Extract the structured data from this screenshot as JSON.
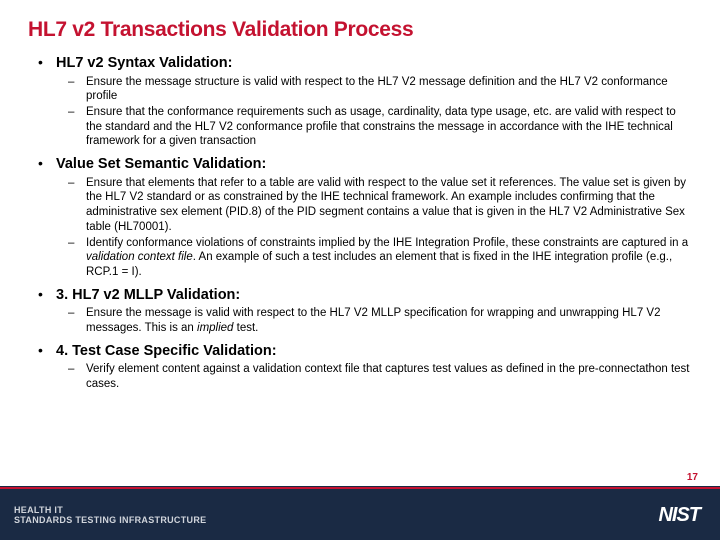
{
  "title": "HL7 v2 Transactions Validation Process",
  "sections": [
    {
      "header": "HL7 v2 Syntax Validation:",
      "items": [
        "Ensure the message structure is valid with respect to the HL7 V2 message definition and the HL7 V2 conformance profile",
        "Ensure that the conformance requirements such as usage, cardinality, data type usage, etc. are valid with respect to the standard and the HL7 V2 conformance profile that constrains the message in accordance with the IHE technical framework for a given transaction"
      ]
    },
    {
      "header": "Value Set Semantic Validation:",
      "items": [
        "Ensure that elements that refer to a table are valid with respect to the value set it references. The value set is given by the HL7 V2 standard or as constrained by the IHE technical framework.  An example includes confirming that the administrative sex element (PID.8) of the PID segment contains a value that is given in the HL7 V2 Administrative Sex table (HL70001).",
        "Identify conformance violations of constraints implied by the IHE Integration Profile, these constraints are captured in a <em>validation context file</em>. An example of such a test includes an element that is fixed in the IHE integration profile (e.g., RCP.1 = I)."
      ]
    },
    {
      "header": "3. HL7 v2 MLLP Validation:",
      "items": [
        "Ensure the message is valid with respect to the HL7 V2 MLLP specification for wrapping and unwrapping HL7 V2 messages. This is an <em>implied</em> test."
      ]
    },
    {
      "header": "4. Test Case Specific Validation:",
      "items": [
        "Verify element content against a validation context file that captures test values as defined in the pre-connectathon test cases."
      ]
    }
  ],
  "footer": {
    "line1": "HEALTH IT",
    "line2": "STANDARDS TESTING INFRASTRUCTURE",
    "logo": "NIST",
    "page": "17"
  },
  "colors": {
    "accent": "#c41230",
    "footer_bg": "#1a2a44",
    "text": "#000000"
  }
}
